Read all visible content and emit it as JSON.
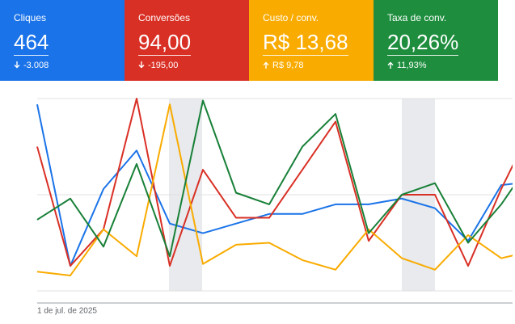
{
  "cards": [
    {
      "title": "Cliques",
      "value": "464",
      "delta": "-3.008",
      "direction": "down",
      "color": "#1a73e8"
    },
    {
      "title": "Conversões",
      "value": "94,00",
      "delta": "-195,00",
      "direction": "down",
      "color": "#d93025"
    },
    {
      "title": "Custo / conv.",
      "value": "R$ 13,68",
      "delta": "R$ 9,78",
      "direction": "up",
      "color": "#f9ab00"
    },
    {
      "title": "Taxa de conv.",
      "value": "20,26%",
      "delta": "11,93%",
      "direction": "up",
      "color": "#1e8e3e"
    }
  ],
  "chart_data": {
    "type": "line",
    "categories": [
      "1 de jul. de 2025",
      null,
      null,
      null,
      null,
      null,
      null,
      null,
      null,
      null,
      null,
      null,
      null,
      null,
      null,
      null
    ],
    "ylim": [
      0,
      100
    ],
    "series": [
      {
        "color": "#1a73e8",
        "values": [
          97,
          13,
          53,
          73,
          35,
          30,
          35,
          40,
          40,
          45,
          45,
          48,
          43,
          26,
          55,
          57
        ]
      },
      {
        "color": "#d93025",
        "values": [
          75,
          13,
          32,
          100,
          13,
          63,
          38,
          38,
          63,
          88,
          26,
          50,
          50,
          13,
          53,
          88
        ]
      },
      {
        "color": "#f9ab00",
        "values": [
          10,
          8,
          32,
          18,
          97,
          14,
          24,
          25,
          16,
          11,
          32,
          17,
          11,
          29,
          17,
          21
        ]
      },
      {
        "color": "#188038",
        "values": [
          37,
          48,
          23,
          66,
          18,
          99,
          51,
          45,
          75,
          92,
          30,
          50,
          56,
          25,
          45,
          70
        ]
      }
    ]
  }
}
